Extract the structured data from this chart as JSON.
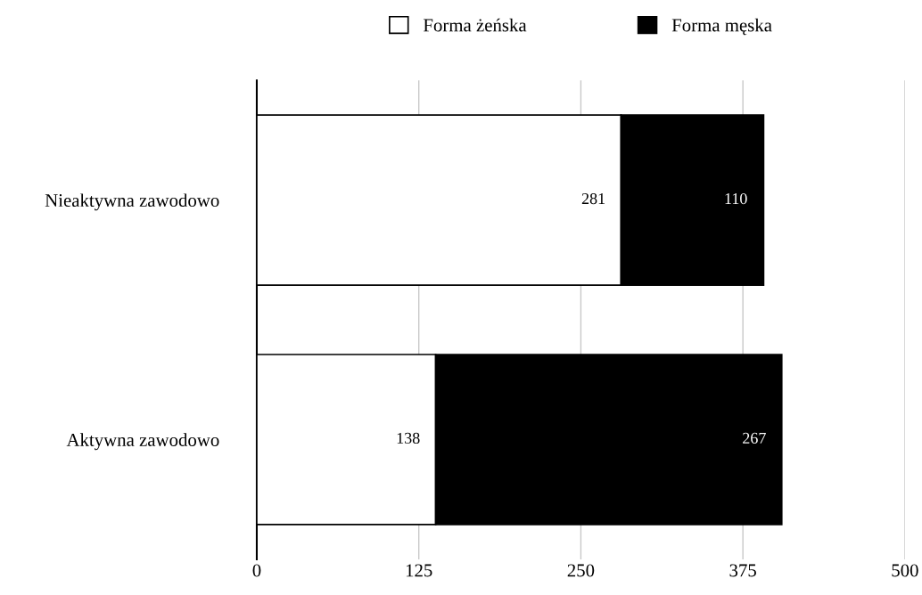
{
  "chart_data": {
    "type": "bar",
    "orientation": "horizontal",
    "stacked": true,
    "categories": [
      "Nieaktywna zawodowo",
      "Aktywna zawodowo"
    ],
    "series": [
      {
        "name": "Forma żeńska",
        "color": "#ffffff",
        "values": [
          281,
          138
        ]
      },
      {
        "name": "Forma męska",
        "color": "#000000",
        "values": [
          110,
          267
        ]
      }
    ],
    "xlim": [
      0,
      500
    ],
    "xticks": [
      0,
      125,
      250,
      375,
      500
    ],
    "grid": "x",
    "legend": "top",
    "data_labels": true
  }
}
